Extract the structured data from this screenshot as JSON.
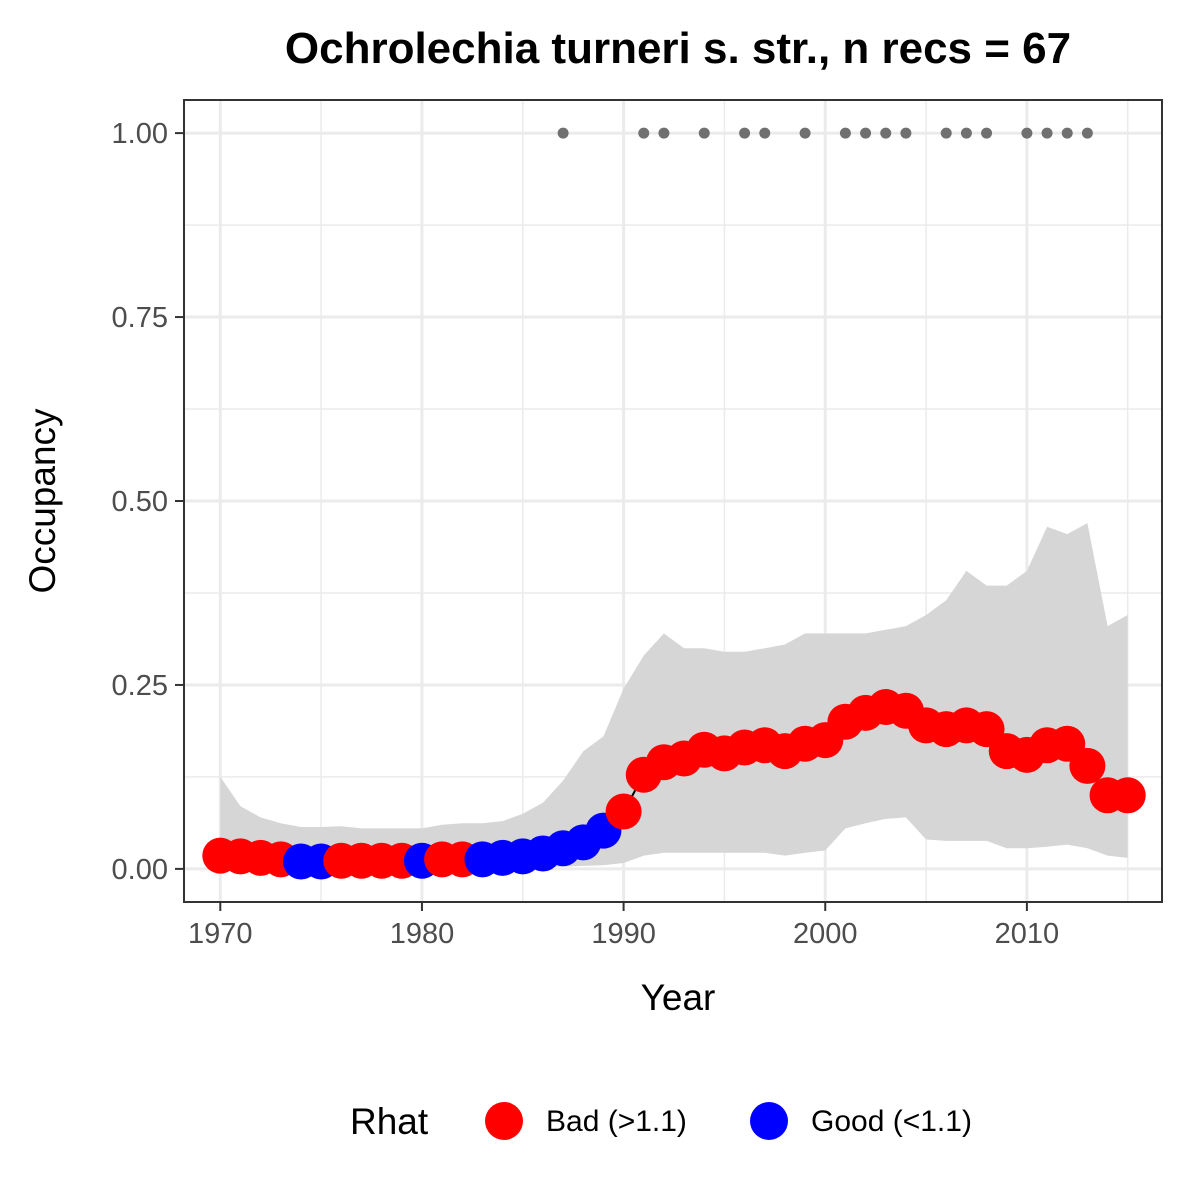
{
  "chart_data": {
    "type": "line",
    "title": "Ochrolechia turneri s. str., n recs = 67",
    "xlabel": "Year",
    "ylabel": "Occupancy",
    "xlim": [
      1968.2,
      2016.7
    ],
    "ylim": [
      -0.045,
      1.045
    ],
    "x_ticks": [
      1970,
      1980,
      1990,
      2000,
      2010
    ],
    "y_ticks": [
      0,
      0.25,
      0.5,
      0.75,
      1.0
    ],
    "y_tick_labels": [
      "0.00",
      "0.25",
      "0.50",
      "0.75",
      "1.00"
    ],
    "grid": true,
    "x": [
      1970,
      1971,
      1972,
      1973,
      1974,
      1975,
      1976,
      1977,
      1978,
      1979,
      1980,
      1981,
      1982,
      1983,
      1984,
      1985,
      1986,
      1987,
      1988,
      1989,
      1990,
      1991,
      1992,
      1993,
      1994,
      1995,
      1996,
      1997,
      1998,
      1999,
      2000,
      2001,
      2002,
      2003,
      2004,
      2005,
      2006,
      2007,
      2008,
      2009,
      2010,
      2011,
      2012,
      2013,
      2014,
      2015
    ],
    "mean": [
      0.018,
      0.017,
      0.015,
      0.013,
      0.01,
      0.01,
      0.011,
      0.011,
      0.011,
      0.011,
      0.011,
      0.013,
      0.013,
      0.013,
      0.015,
      0.017,
      0.021,
      0.028,
      0.036,
      0.052,
      0.078,
      0.128,
      0.145,
      0.15,
      0.162,
      0.157,
      0.165,
      0.168,
      0.16,
      0.17,
      0.175,
      0.2,
      0.212,
      0.22,
      0.215,
      0.195,
      0.19,
      0.195,
      0.19,
      0.16,
      0.155,
      0.168,
      0.17,
      0.14,
      0.1,
      0.1
    ],
    "lower": [
      0.005,
      0.004,
      0.003,
      0.003,
      0.002,
      0.002,
      0.002,
      0.002,
      0.002,
      0.002,
      0.002,
      0.002,
      0.002,
      0.002,
      0.002,
      0.002,
      0.003,
      0.003,
      0.004,
      0.005,
      0.008,
      0.018,
      0.022,
      0.022,
      0.022,
      0.022,
      0.022,
      0.022,
      0.018,
      0.022,
      0.025,
      0.055,
      0.062,
      0.068,
      0.07,
      0.04,
      0.038,
      0.038,
      0.038,
      0.028,
      0.028,
      0.03,
      0.033,
      0.028,
      0.018,
      0.015
    ],
    "upper": [
      0.125,
      0.085,
      0.07,
      0.062,
      0.057,
      0.057,
      0.058,
      0.055,
      0.055,
      0.055,
      0.055,
      0.06,
      0.062,
      0.062,
      0.065,
      0.075,
      0.09,
      0.12,
      0.16,
      0.18,
      0.245,
      0.29,
      0.32,
      0.3,
      0.3,
      0.295,
      0.295,
      0.3,
      0.305,
      0.32,
      0.32,
      0.32,
      0.32,
      0.325,
      0.33,
      0.345,
      0.365,
      0.405,
      0.385,
      0.385,
      0.405,
      0.465,
      0.455,
      0.47,
      0.33,
      0.345
    ],
    "rhat": [
      "Bad",
      "Bad",
      "Bad",
      "Bad",
      "Good",
      "Good",
      "Bad",
      "Bad",
      "Bad",
      "Bad",
      "Good",
      "Bad",
      "Bad",
      "Good",
      "Good",
      "Good",
      "Good",
      "Good",
      "Good",
      "Good",
      "Bad",
      "Bad",
      "Bad",
      "Bad",
      "Bad",
      "Bad",
      "Bad",
      "Bad",
      "Bad",
      "Bad",
      "Bad",
      "Bad",
      "Bad",
      "Bad",
      "Bad",
      "Bad",
      "Bad",
      "Bad",
      "Bad",
      "Bad",
      "Bad",
      "Bad",
      "Bad",
      "Bad",
      "Bad",
      "Bad"
    ],
    "record_years": [
      1987,
      1991,
      1992,
      1994,
      1996,
      1997,
      1999,
      2001,
      2002,
      2003,
      2004,
      2006,
      2007,
      2008,
      2010,
      2011,
      2012,
      2013
    ],
    "record_y": 1.0,
    "legend": {
      "title": "Rhat",
      "position": "bottom",
      "items": [
        {
          "key": "Bad",
          "label": "Bad (>1.1)",
          "color": "#ff0000"
        },
        {
          "key": "Good",
          "label": "Good (<1.1)",
          "color": "#0000ff"
        }
      ]
    },
    "colors": {
      "ribbon": "#d6d6d6",
      "records": "#707070",
      "grid": "#ebebeb",
      "border": "#333333"
    }
  }
}
